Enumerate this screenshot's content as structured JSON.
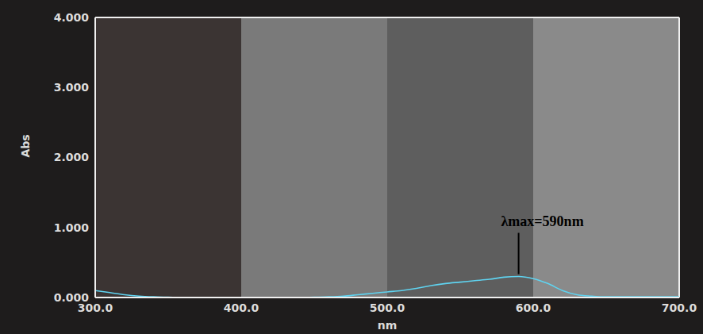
{
  "chart_data": {
    "type": "line",
    "x_label": "nm",
    "y_label": "Abs",
    "x": [
      300,
      310,
      320,
      330,
      340,
      350,
      360,
      370,
      380,
      390,
      400,
      410,
      420,
      430,
      440,
      450,
      460,
      470,
      480,
      490,
      500,
      510,
      520,
      530,
      540,
      550,
      560,
      570,
      580,
      590,
      600,
      610,
      620,
      630,
      640,
      650,
      660,
      670,
      680,
      690,
      700
    ],
    "values": [
      0.1,
      0.07,
      0.04,
      0.02,
      0.01,
      0.005,
      0,
      0,
      0,
      0,
      0,
      0,
      0,
      0,
      0,
      0.005,
      0.01,
      0.02,
      0.04,
      0.06,
      0.08,
      0.1,
      0.13,
      0.17,
      0.2,
      0.22,
      0.24,
      0.26,
      0.29,
      0.3,
      0.27,
      0.2,
      0.1,
      0.04,
      0.02,
      0.01,
      0.01,
      0.01,
      0.01,
      0.01,
      0.01
    ],
    "color": "#5fd3f0",
    "xlim": [
      300,
      700
    ],
    "xticks": [
      {
        "value": 300,
        "label": "300.0"
      },
      {
        "value": 400,
        "label": "400.0"
      },
      {
        "value": 500,
        "label": "500.0"
      },
      {
        "value": 600,
        "label": "600.0"
      },
      {
        "value": 700,
        "label": "700.0"
      }
    ],
    "ylim": [
      0,
      4
    ],
    "yticks": [
      {
        "value": 0,
        "label": "0.000"
      },
      {
        "value": 1,
        "label": "1.000"
      },
      {
        "value": 2,
        "label": "2.000"
      },
      {
        "value": 3,
        "label": "3.000"
      },
      {
        "value": 4,
        "label": "4.000"
      }
    ],
    "grid": true,
    "annotation": {
      "text": "λmax=590nm",
      "x": 590
    }
  }
}
